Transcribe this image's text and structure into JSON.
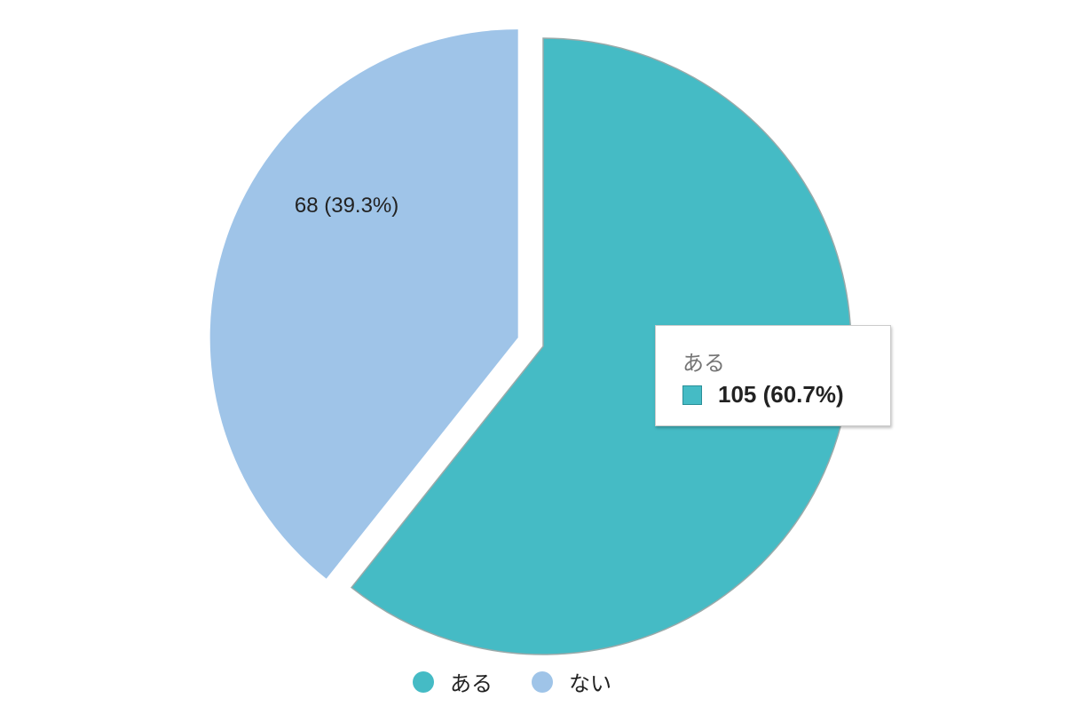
{
  "chart_data": {
    "type": "pie",
    "slices": [
      {
        "label": "ある",
        "value": 105,
        "percent": 60.7,
        "display": "105 (60.7%)",
        "color": "#45bbc5"
      },
      {
        "label": "ない",
        "value": 68,
        "percent": 39.3,
        "display": "68 (39.3%)",
        "color": "#9fc4e8",
        "exploded": true
      }
    ],
    "legend_position": "bottom",
    "tooltip": {
      "title": "ある",
      "value": "105 (60.7%)"
    }
  }
}
